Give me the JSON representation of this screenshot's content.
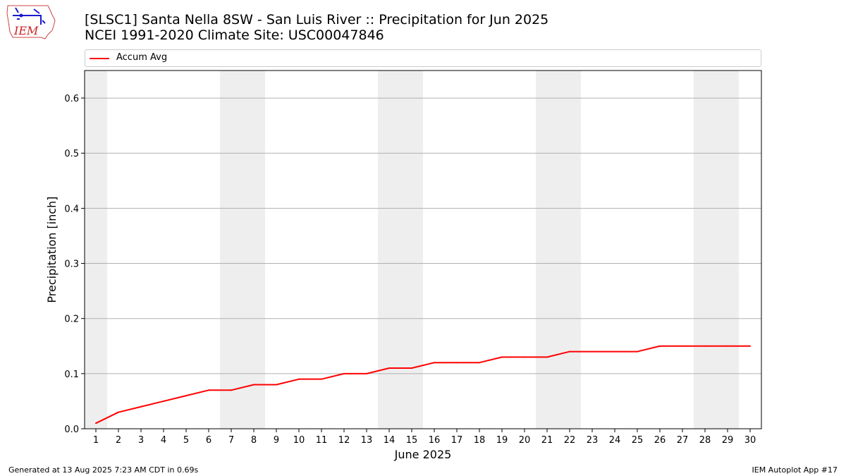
{
  "header": {
    "title_line1": "[SLSC1] Santa Nella 8SW - San Luis River :: Precipitation for Jun 2025",
    "title_line2": "NCEI 1991-2020 Climate Site: USC00047846",
    "logo_text": "IEM"
  },
  "legend": {
    "label": "Accum Avg"
  },
  "footer": {
    "generated": "Generated at 13 Aug 2025 7:23 AM CDT in 0.69s",
    "app": "IEM Autoplot App #17"
  },
  "colors": {
    "line": "#ff0000",
    "weekend_band": "#eeeeee",
    "grid": "#b0b0b0",
    "logo": "#1a1acc",
    "logo_text": "#cc2222"
  },
  "chart_data": {
    "type": "line",
    "title": "[SLSC1] Santa Nella 8SW - San Luis River :: Precipitation for Jun 2025",
    "subtitle": "NCEI 1991-2020 Climate Site: USC00047846",
    "xlabel": "June 2025",
    "ylabel": "Precipitation [inch]",
    "xlim": [
      0.5,
      30.5
    ],
    "ylim": [
      0,
      0.65
    ],
    "yticks": [
      0.0,
      0.1,
      0.2,
      0.3,
      0.4,
      0.5,
      0.6
    ],
    "ytick_labels": [
      "0.0",
      "0.1",
      "0.2",
      "0.3",
      "0.4",
      "0.5",
      "0.6"
    ],
    "x": [
      1,
      2,
      3,
      4,
      5,
      6,
      7,
      8,
      9,
      10,
      11,
      12,
      13,
      14,
      15,
      16,
      17,
      18,
      19,
      20,
      21,
      22,
      23,
      24,
      25,
      26,
      27,
      28,
      29,
      30
    ],
    "xtick_labels": [
      "1",
      "2",
      "3",
      "4",
      "5",
      "6",
      "7",
      "8",
      "9",
      "10",
      "11",
      "12",
      "13",
      "14",
      "15",
      "16",
      "17",
      "18",
      "19",
      "20",
      "21",
      "22",
      "23",
      "24",
      "25",
      "26",
      "27",
      "28",
      "29",
      "30"
    ],
    "weekend_spans": [
      [
        0.5,
        1.5
      ],
      [
        6.5,
        8.5
      ],
      [
        13.5,
        15.5
      ],
      [
        20.5,
        22.5
      ],
      [
        27.5,
        29.5
      ]
    ],
    "grid": "horizontal",
    "legend_position": "top",
    "series": [
      {
        "name": "Accum Avg",
        "color": "#ff0000",
        "values": [
          0.01,
          0.03,
          0.04,
          0.05,
          0.06,
          0.07,
          0.07,
          0.08,
          0.08,
          0.09,
          0.09,
          0.1,
          0.1,
          0.11,
          0.11,
          0.12,
          0.12,
          0.12,
          0.13,
          0.13,
          0.13,
          0.14,
          0.14,
          0.14,
          0.14,
          0.15,
          0.15,
          0.15,
          0.15,
          0.15
        ]
      }
    ]
  }
}
